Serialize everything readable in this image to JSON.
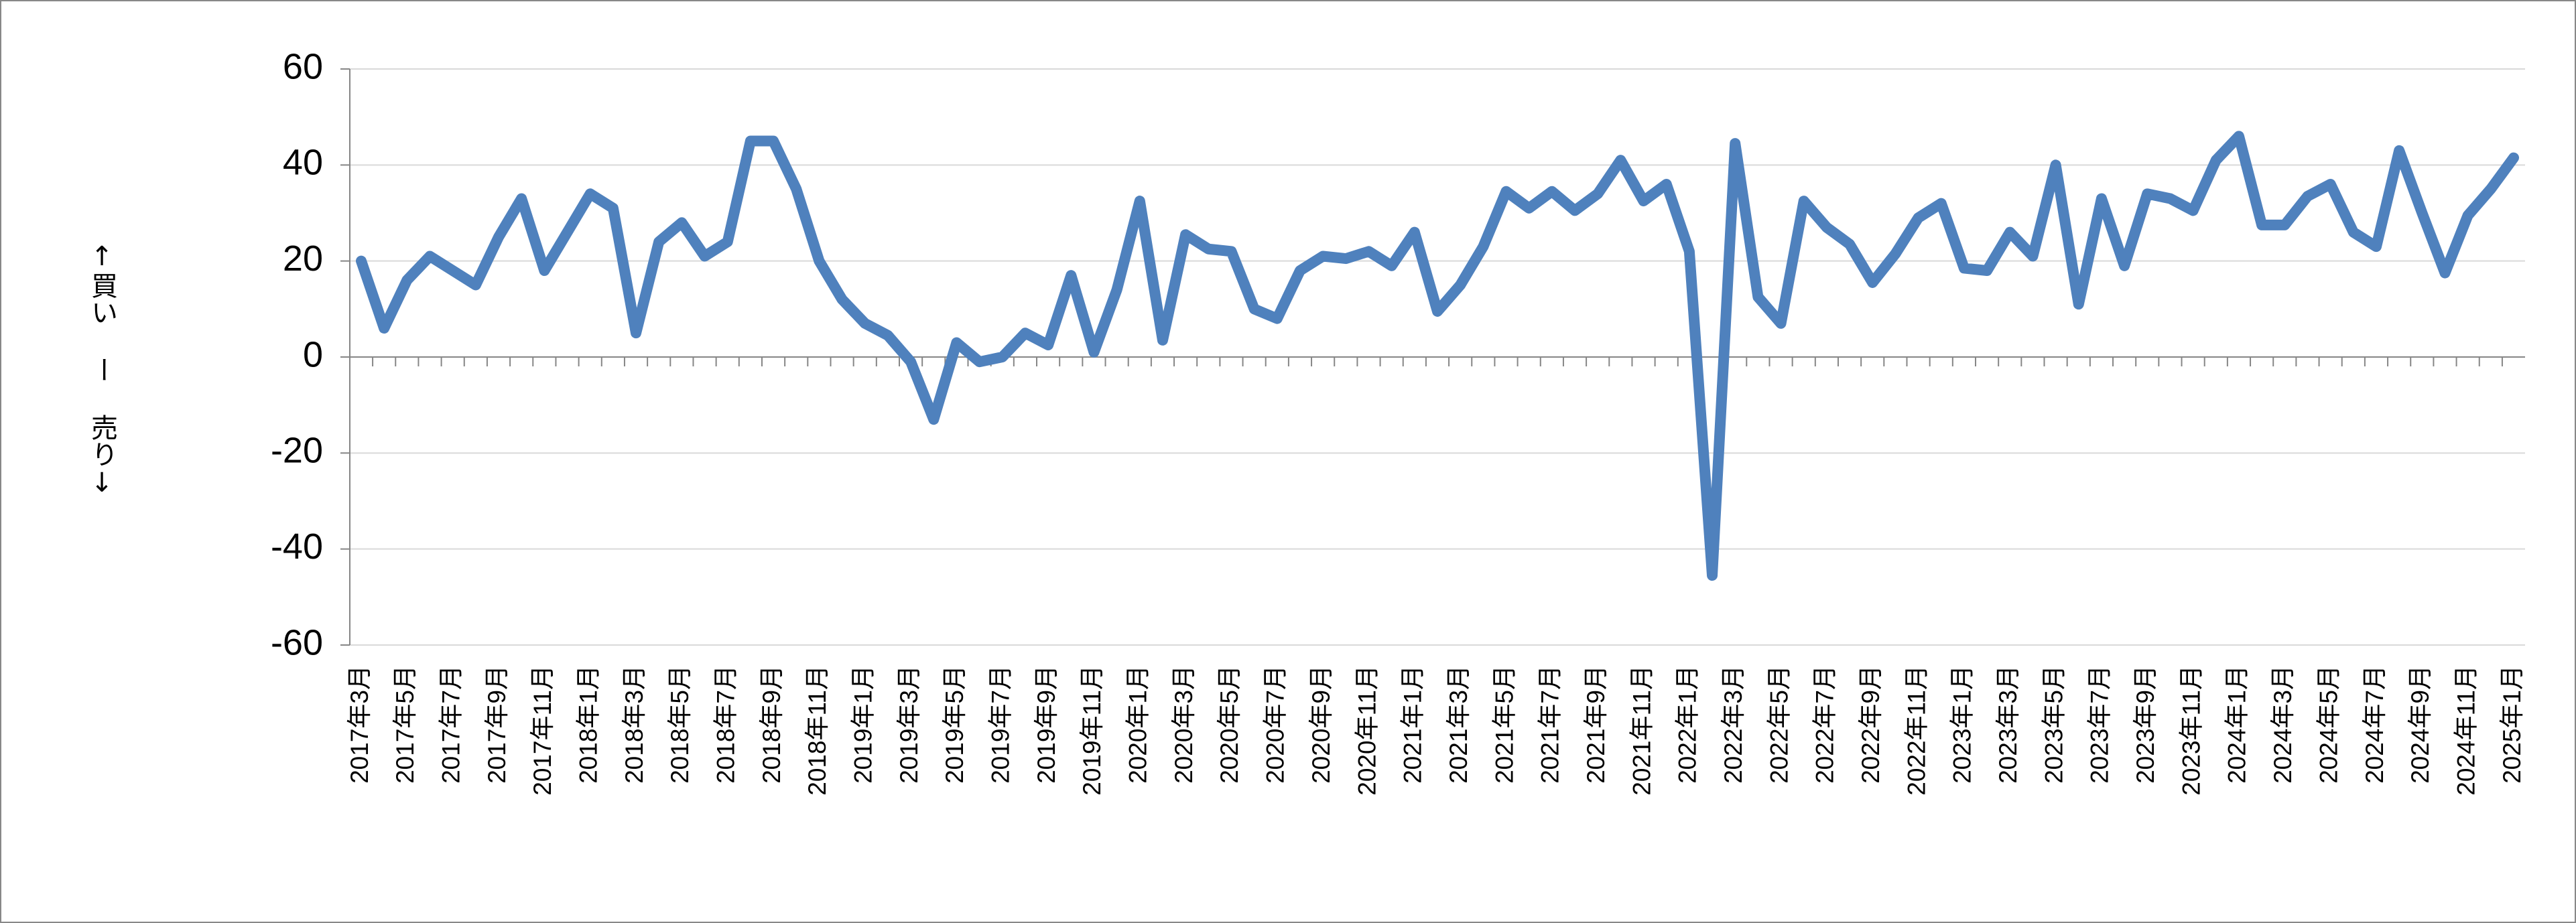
{
  "chart_data": {
    "type": "line",
    "y_label": "↑買い ー 売り↓",
    "categories": [
      "2017年3月",
      null,
      "2017年5月",
      null,
      "2017年7月",
      null,
      "2017年9月",
      null,
      "2017年11月",
      null,
      "2018年1月",
      null,
      "2018年3月",
      null,
      "2018年5月",
      null,
      "2018年7月",
      null,
      "2018年9月",
      null,
      "2018年11月",
      null,
      "2019年1月",
      null,
      "2019年3月",
      null,
      "2019年5月",
      null,
      "2019年7月",
      null,
      "2019年9月",
      null,
      "2019年11月",
      null,
      "2020年1月",
      null,
      "2020年3月",
      null,
      "2020年5月",
      null,
      "2020年7月",
      null,
      "2020年9月",
      null,
      "2020年11月",
      null,
      "2021年1月",
      null,
      "2021年3月",
      null,
      "2021年5月",
      null,
      "2021年7月",
      null,
      "2021年9月",
      null,
      "2021年11月",
      null,
      "2022年1月",
      null,
      "2022年3月",
      null,
      "2022年5月",
      null,
      "2022年7月",
      null,
      "2022年9月",
      null,
      "2022年11月",
      null,
      "2023年1月",
      null,
      "2023年3月",
      null,
      "2023年5月",
      null,
      "2023年7月",
      null,
      "2023年9月",
      null,
      "2023年11月",
      null,
      "2024年1月",
      null,
      "2024年3月",
      null,
      "2024年5月",
      null,
      "2024年7月",
      null,
      "2024年9月",
      null,
      "2024年11月",
      null,
      "2025年1月"
    ],
    "values": [
      20,
      6,
      16,
      21,
      18,
      15,
      25,
      33,
      18,
      26,
      34,
      31,
      5,
      24,
      28,
      21,
      24,
      45,
      45,
      35,
      20,
      12,
      7,
      4.5,
      -1,
      -13,
      3,
      -1,
      0,
      5,
      2.5,
      17,
      1,
      14,
      32.5,
      3.5,
      25.5,
      22.5,
      22,
      10,
      8,
      18,
      21,
      20.5,
      22,
      19,
      26,
      9.5,
      15,
      23,
      34.5,
      31,
      34.5,
      30.5,
      34,
      41,
      32.5,
      36,
      22,
      -45.5,
      44.5,
      12.5,
      7,
      32.5,
      27,
      23.5,
      15.5,
      21.5,
      29,
      32,
      18.5,
      18,
      26,
      21,
      40,
      11,
      33,
      19,
      34,
      33,
      30.5,
      41,
      46,
      27.5,
      27.5,
      33.5,
      36,
      26,
      23,
      43,
      30,
      17.5,
      29.5,
      35,
      41.5
    ],
    "color": "#4f81bd",
    "ylim": [
      -60,
      60
    ],
    "yticks": [
      -60,
      -40,
      -20,
      0,
      20,
      40,
      60
    ],
    "grid": true
  }
}
